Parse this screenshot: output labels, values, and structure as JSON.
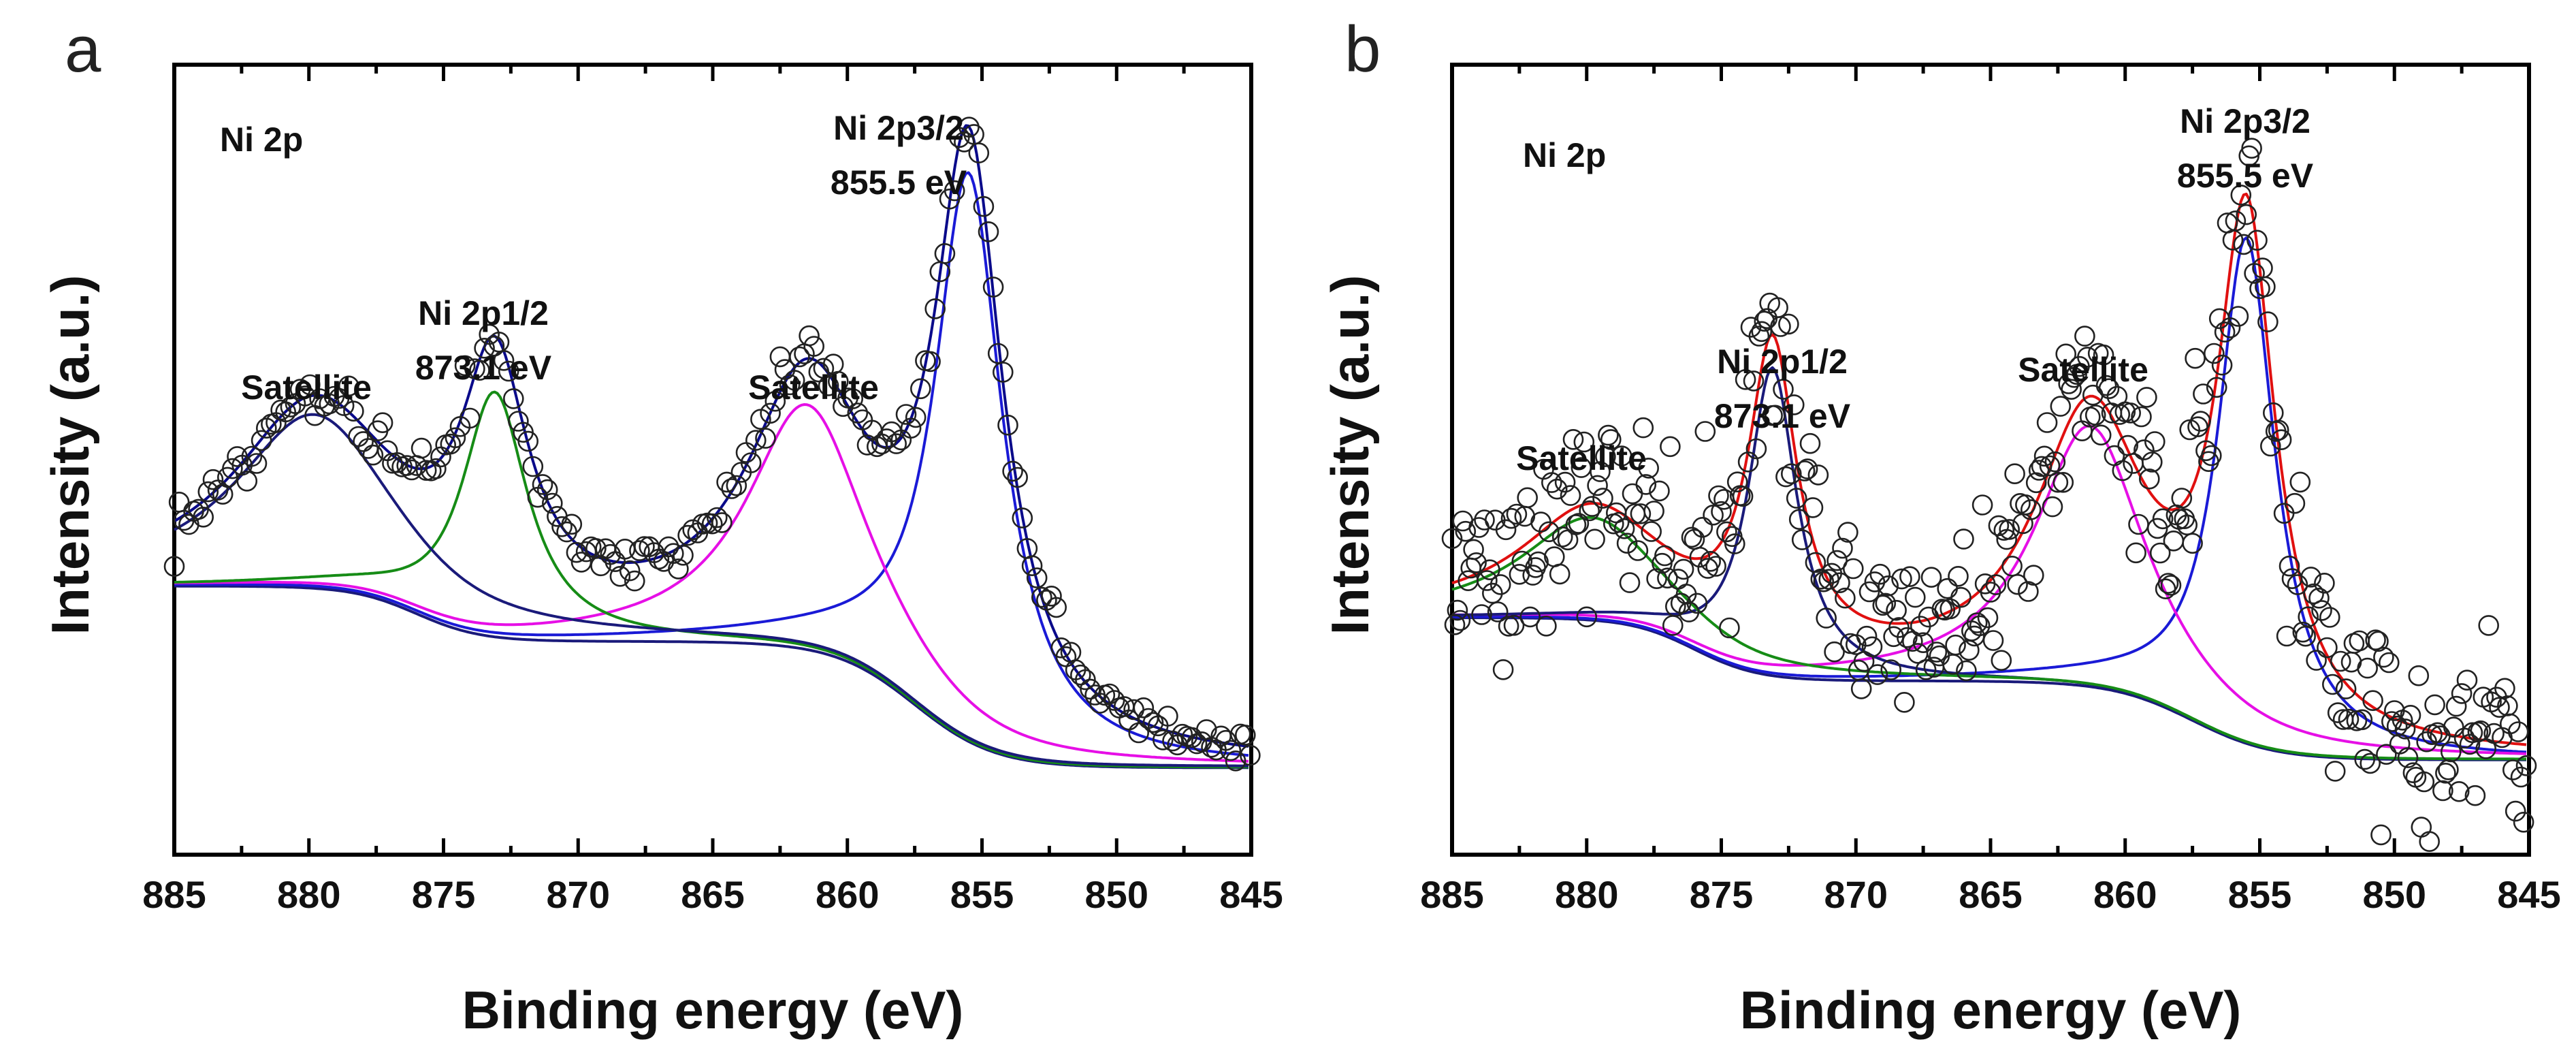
{
  "chart_data": [
    {
      "panel": "a",
      "type": "scatter",
      "title": "Ni 2p",
      "xlabel": "Binding energy (eV)",
      "ylabel": "Intensity (a.u.)",
      "xlim": [
        885,
        845
      ],
      "ylim": [
        0,
        100
      ],
      "xticks": [
        "885",
        "880",
        "875",
        "870",
        "865",
        "860",
        "855",
        "850",
        "845"
      ],
      "annotations": [
        {
          "line1": "Ni 2p3/2",
          "line2": "855.5 eV",
          "x": 855.5,
          "y": 90
        },
        {
          "line1": "Ni 2p1/2",
          "line2": "873.1 eV",
          "x": 873.1,
          "y": 72
        },
        {
          "line1": "Satellite",
          "line2": "",
          "x": 880,
          "y": 68
        },
        {
          "line1": "Satellite",
          "line2": "",
          "x": 861.5,
          "y": 68
        }
      ],
      "fit": {
        "background": {
          "base": 11,
          "step1": {
            "center": 857.5,
            "height": 16,
            "width": 1.5
          },
          "step2": {
            "center": 876,
            "height": 7,
            "width": 1.2
          }
        },
        "components": [
          {
            "name": "Ni 2p3/2",
            "center": 855.5,
            "height": 72,
            "width": 1.55,
            "color": "#1a1ad6"
          },
          {
            "name": "Satellite",
            "center": 861.5,
            "height": 31,
            "width": 2.7,
            "color": "#e60fe6"
          },
          {
            "name": "Ni 2p1/2",
            "center": 873.1,
            "height": 31,
            "width": 1.5,
            "color": "#168c16"
          },
          {
            "name": "Satellite",
            "center": 879.8,
            "height": 22,
            "width": 3.6,
            "color": "#1a1a7a"
          }
        ]
      },
      "scatter_noise": 1.4,
      "envelope_color": "#0a0a8a"
    },
    {
      "panel": "b",
      "type": "scatter",
      "title": "Ni 2p",
      "xlabel": "Binding energy (eV)",
      "ylabel": "Intensity (a.u.)",
      "xlim": [
        885,
        845
      ],
      "ylim": [
        0,
        100
      ],
      "xticks": [
        "885",
        "880",
        "875",
        "870",
        "865",
        "860",
        "855",
        "850",
        "845"
      ],
      "annotations": [
        {
          "line1": "Ni 2p3/2",
          "line2": "855.5 eV",
          "x": 855.5,
          "y": 92
        },
        {
          "line1": "Ni 2p1/2",
          "line2": "873.1 eV",
          "x": 873.1,
          "y": 68
        },
        {
          "line1": "Satellite",
          "line2": "",
          "x": 879.5,
          "y": 60
        },
        {
          "line1": "Satellite",
          "line2": "",
          "x": 861.5,
          "y": 70
        }
      ],
      "fit": {
        "background": {
          "base": 12,
          "step1": {
            "center": 857.5,
            "height": 10,
            "width": 1.5
          },
          "step2": {
            "center": 876,
            "height": 8,
            "width": 1.2
          }
        },
        "components": [
          {
            "name": "Ni 2p3/2",
            "center": 855.5,
            "height": 64,
            "width": 1.3,
            "color": "#1a1ad6"
          },
          {
            "name": "Satellite",
            "center": 861.3,
            "height": 33,
            "width": 2.5,
            "color": "#e60fe6"
          },
          {
            "name": "Ni 2p1/2",
            "center": 873.1,
            "height": 39,
            "width": 1.1,
            "color": "#1a1a7a"
          },
          {
            "name": "Satellite",
            "center": 879.8,
            "height": 13,
            "width": 3.2,
            "color": "#168c16"
          }
        ]
      },
      "scatter_noise": 5.5,
      "envelope_color": "#e01010"
    }
  ]
}
